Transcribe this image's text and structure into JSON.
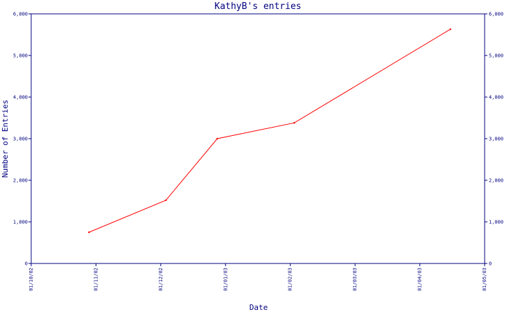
{
  "chart_data": {
    "type": "line",
    "title": "KathyB's entries",
    "xlabel": "Date",
    "ylabel": "Number of Entries",
    "x_tick_labels": [
      "01/10/02",
      "01/11/02",
      "01/12/02",
      "01/01/03",
      "01/02/03",
      "01/03/03",
      "01/04/03",
      "01/05/03"
    ],
    "y_tick_labels": [
      "0",
      "1,000",
      "2,000",
      "3,000",
      "4,000",
      "5,000",
      "6,000"
    ],
    "ylim": [
      0,
      6000
    ],
    "xlim": [
      "2002-10-01",
      "2003-05-01"
    ],
    "grid": false,
    "colors": {
      "line": "#ff0000",
      "axes": "#000080"
    },
    "series": [
      {
        "points": [
          {
            "x": "2002-10-28",
            "y": 750
          },
          {
            "x": "2002-12-03",
            "y": 1520
          },
          {
            "x": "2002-12-27",
            "y": 3000
          },
          {
            "x": "2003-02-01",
            "y": 3380
          },
          {
            "x": "2003-04-15",
            "y": 5630
          }
        ]
      }
    ]
  }
}
